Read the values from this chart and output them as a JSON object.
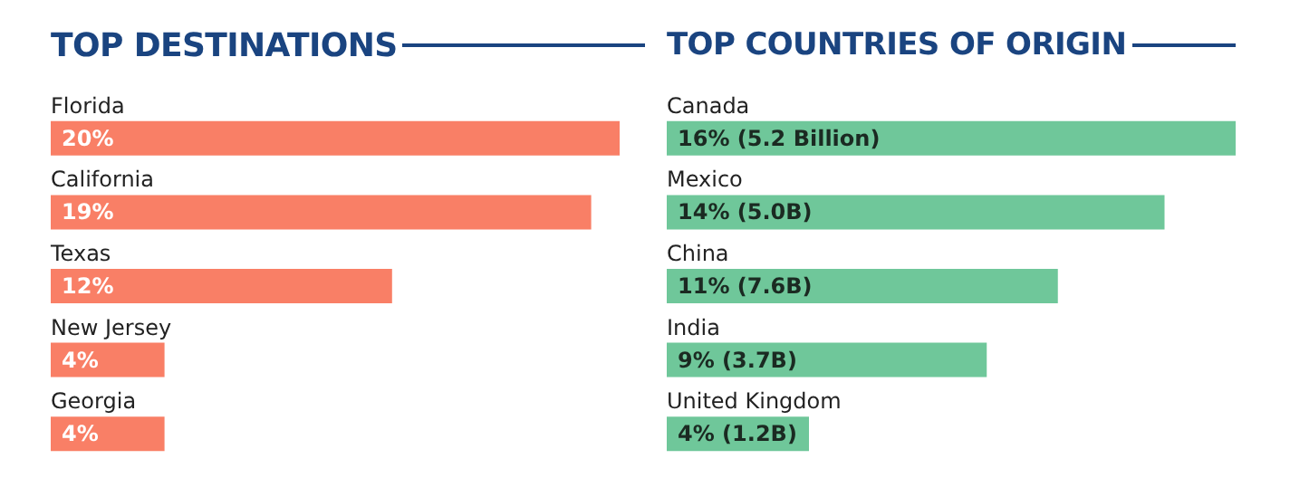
{
  "chart_data": [
    {
      "type": "bar",
      "orientation": "horizontal",
      "title": "TOP DESTINATIONS",
      "categories": [
        "Florida",
        "California",
        "Texas",
        "New Jersey",
        "Georgia"
      ],
      "values": [
        20,
        19,
        12,
        4,
        4
      ],
      "value_labels": [
        "20%",
        "19%",
        "12%",
        "4%",
        "4%"
      ],
      "color": "#f97f66"
    },
    {
      "type": "bar",
      "orientation": "horizontal",
      "title": "TOP COUNTRIES OF ORIGIN",
      "categories": [
        "Canada",
        "Mexico",
        "China",
        "India",
        "United Kingdom"
      ],
      "values": [
        16,
        14,
        11,
        9,
        4
      ],
      "value_labels": [
        "16% (5.2 Billion)",
        "14% (5.0B)",
        "11% (7.6B)",
        "9% (3.7B)",
        "4% (1.2B)"
      ],
      "color": "#6fc79a"
    }
  ]
}
